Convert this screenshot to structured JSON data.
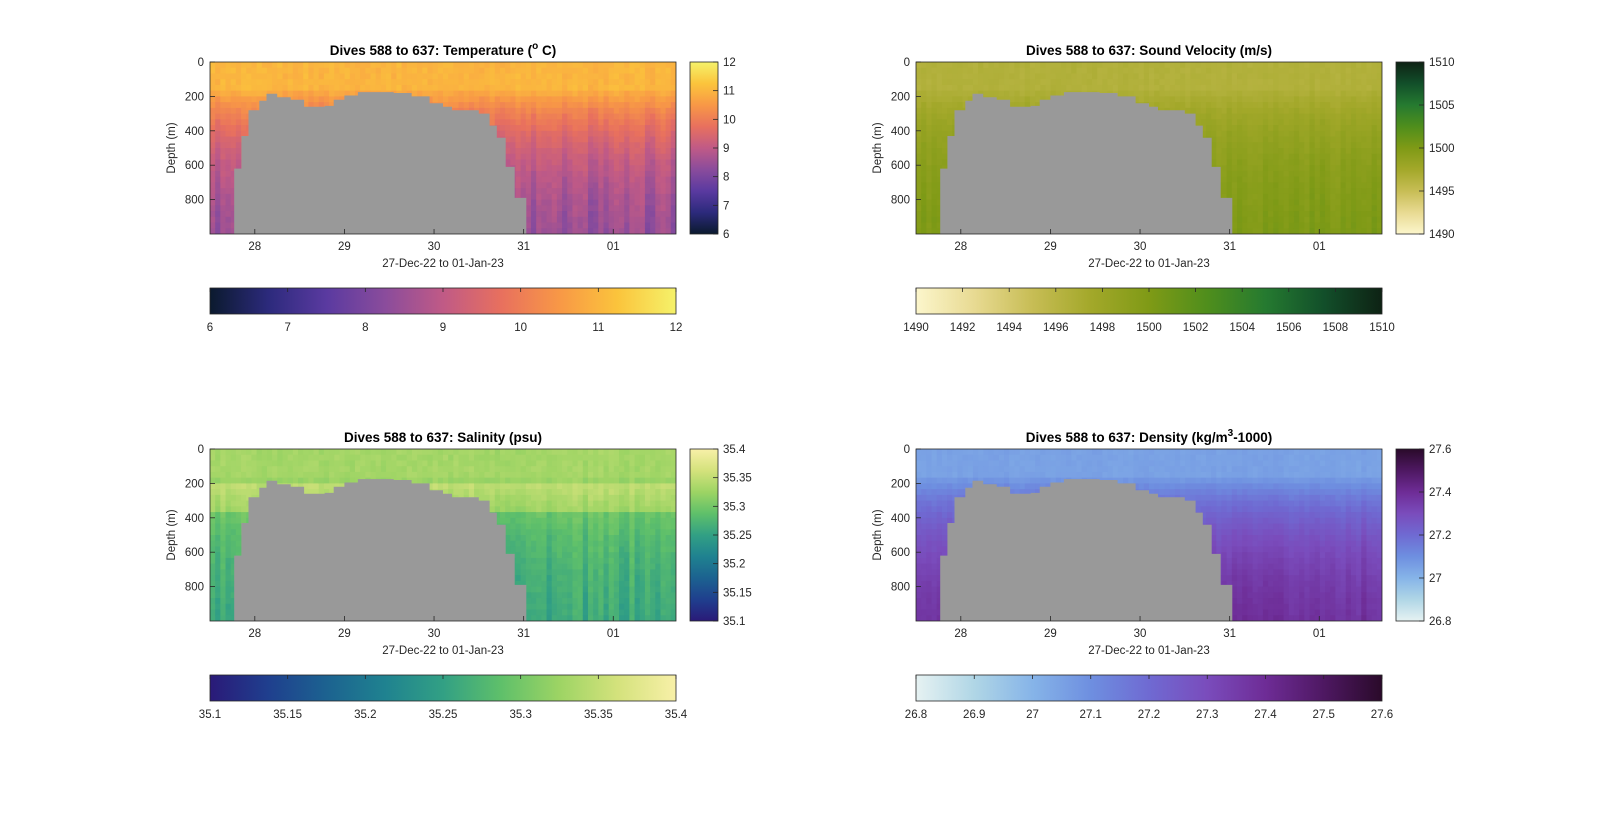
{
  "chart_data": [
    {
      "type": "heatmap",
      "key": "temperature",
      "title": "Dives 588 to 637: Temperature (",
      "title_sup": "o",
      "title_tail": " C)",
      "xlabel": "27-Dec-22 to 01-Jan-23",
      "ylabel": "Depth (m)",
      "x_ticks": [
        "28",
        "29",
        "30",
        "31",
        "01"
      ],
      "x_tick_days": [
        28,
        29,
        30,
        31,
        32
      ],
      "xlim": [
        27.5,
        32.7
      ],
      "y_ticks": [
        "0",
        "200",
        "400",
        "600",
        "800"
      ],
      "y_tick_values": [
        0,
        200,
        400,
        600,
        800
      ],
      "ylim": [
        0,
        1000
      ],
      "clim": [
        6,
        12
      ],
      "cbar_right_ticks": [
        "6",
        "7",
        "8",
        "9",
        "10",
        "11",
        "12"
      ],
      "cbar_bottom_ticks": [
        "6",
        "7",
        "8",
        "9",
        "10",
        "11",
        "12"
      ],
      "colormap": [
        "#0b1a2e",
        "#2c2a7c",
        "#5a3aa0",
        "#8a4c9c",
        "#c05a86",
        "#e8705e",
        "#f89846",
        "#fbc43c",
        "#f5f26a"
      ],
      "surface_value": 11.0,
      "deep_value": 8.1,
      "column_noise": 0.5,
      "dividers": false
    },
    {
      "type": "heatmap",
      "key": "sound_velocity",
      "title": "Dives 588 to 637: Sound Velocity (m/s)",
      "title_sup": "",
      "title_tail": "",
      "xlabel": "27-Dec-22 to 01-Jan-23",
      "ylabel": "Depth (m)",
      "x_ticks": [
        "28",
        "29",
        "30",
        "31",
        "01"
      ],
      "x_tick_days": [
        28,
        29,
        30,
        31,
        32
      ],
      "xlim": [
        27.5,
        32.7
      ],
      "y_ticks": [
        "0",
        "200",
        "400",
        "600",
        "800"
      ],
      "y_tick_values": [
        0,
        200,
        400,
        600,
        800
      ],
      "ylim": [
        0,
        1000
      ],
      "clim": [
        1490,
        1510
      ],
      "cbar_right_ticks": [
        "1490",
        "1495",
        "1500",
        "1505",
        "1510"
      ],
      "cbar_bottom_ticks": [
        "1490",
        "1492",
        "1494",
        "1496",
        "1498",
        "1500",
        "1502",
        "1504",
        "1506",
        "1508",
        "1510"
      ],
      "colormap": [
        "#fcf6cc",
        "#e8da92",
        "#c7bd55",
        "#a3a82a",
        "#7f9a16",
        "#4f8e1c",
        "#257a30",
        "#124f2a",
        "#0e2214"
      ],
      "surface_value": 1496.5,
      "deep_value": 1500.5,
      "column_noise": 0.9,
      "dividers": false
    },
    {
      "type": "heatmap",
      "key": "salinity",
      "title": "Dives 588 to 637: Salinity (psu)",
      "title_sup": "",
      "title_tail": "",
      "xlabel": "27-Dec-22 to 01-Jan-23",
      "ylabel": "Depth (m)",
      "x_ticks": [
        "28",
        "29",
        "30",
        "31",
        "01"
      ],
      "x_tick_days": [
        28,
        29,
        30,
        31,
        32
      ],
      "xlim": [
        27.5,
        32.7
      ],
      "y_ticks": [
        "0",
        "200",
        "400",
        "600",
        "800"
      ],
      "y_tick_values": [
        0,
        200,
        400,
        600,
        800
      ],
      "ylim": [
        0,
        1000
      ],
      "clim": [
        35.1,
        35.4
      ],
      "cbar_right_ticks": [
        "35.1",
        "35.15",
        "35.2",
        "35.25",
        "35.3",
        "35.35",
        "35.4"
      ],
      "cbar_bottom_ticks": [
        "35.1",
        "35.15",
        "35.2",
        "35.25",
        "35.3",
        "35.35",
        "35.4"
      ],
      "colormap": [
        "#2a1a78",
        "#1f3f8e",
        "#1c6290",
        "#1f8290",
        "#32a084",
        "#5fc06a",
        "#9dd464",
        "#d4e27c",
        "#f8f0a8"
      ],
      "surface_value": 35.33,
      "deep_value": 35.25,
      "column_noise": 0.025,
      "dividers": false
    },
    {
      "type": "heatmap",
      "key": "density",
      "title": "Dives 588 to 637: Density (kg/m",
      "title_sup": "3",
      "title_tail": "-1000)",
      "xlabel": "27-Dec-22 to 01-Jan-23",
      "ylabel": "Depth (m)",
      "x_ticks": [
        "28",
        "29",
        "30",
        "31",
        "01"
      ],
      "x_tick_days": [
        28,
        29,
        30,
        31,
        32
      ],
      "xlim": [
        27.5,
        32.7
      ],
      "y_ticks": [
        "0",
        "200",
        "400",
        "600",
        "800"
      ],
      "y_tick_values": [
        0,
        200,
        400,
        600,
        800
      ],
      "ylim": [
        0,
        1000
      ],
      "clim": [
        26.8,
        27.6
      ],
      "cbar_right_ticks": [
        "26.8",
        "27",
        "27.2",
        "27.4",
        "27.6"
      ],
      "cbar_bottom_ticks": [
        "26.8",
        "26.9",
        "27",
        "27.1",
        "27.2",
        "27.3",
        "27.4",
        "27.5",
        "27.6"
      ],
      "colormap": [
        "#e6f2f2",
        "#b0d6e6",
        "#86b4e8",
        "#6e8fe0",
        "#6f6ad2",
        "#7a4cbc",
        "#6e2c96",
        "#4e1862",
        "#2a0a2a"
      ],
      "surface_value": 27.05,
      "deep_value": 27.42,
      "column_noise": 0.04,
      "dividers": false
    }
  ],
  "gap_color": "#999999"
}
